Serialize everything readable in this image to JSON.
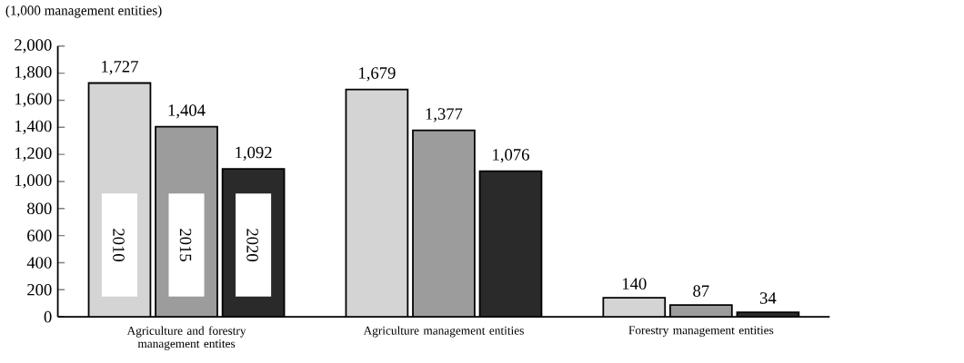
{
  "chart_data": {
    "type": "bar",
    "ylabel": "(1,000 management  entities)",
    "categories": [
      "Agriculture and forestry management entites",
      "Agriculture management entities",
      "Forestry management entities"
    ],
    "series": [
      {
        "name": "2010",
        "color": "#d4d4d4",
        "values": [
          1727,
          1679,
          140
        ],
        "value_labels": [
          "1,727",
          "1,679",
          "140"
        ]
      },
      {
        "name": "2015",
        "color": "#9c9c9c",
        "values": [
          1404,
          1377,
          87
        ],
        "value_labels": [
          "1,404",
          "1,377",
          "87"
        ]
      },
      {
        "name": "2020",
        "color": "#2a2a2a",
        "values": [
          1092,
          1076,
          34
        ],
        "value_labels": [
          "1,092",
          "1,076",
          "34"
        ]
      }
    ],
    "ylim": [
      0,
      2000
    ],
    "yticks": [
      {
        "value": 0,
        "label": "0"
      },
      {
        "value": 200,
        "label": "200"
      },
      {
        "value": 400,
        "label": "400"
      },
      {
        "value": 600,
        "label": "600"
      },
      {
        "value": 800,
        "label": "800"
      },
      {
        "value": 1000,
        "label": "1,000"
      },
      {
        "value": 1200,
        "label": "1,200"
      },
      {
        "value": 1400,
        "label": "1,400"
      },
      {
        "value": 1600,
        "label": "1,600"
      },
      {
        "value": 1800,
        "label": "1,800"
      },
      {
        "value": 2000,
        "label": "2,000"
      }
    ],
    "grid": false
  }
}
